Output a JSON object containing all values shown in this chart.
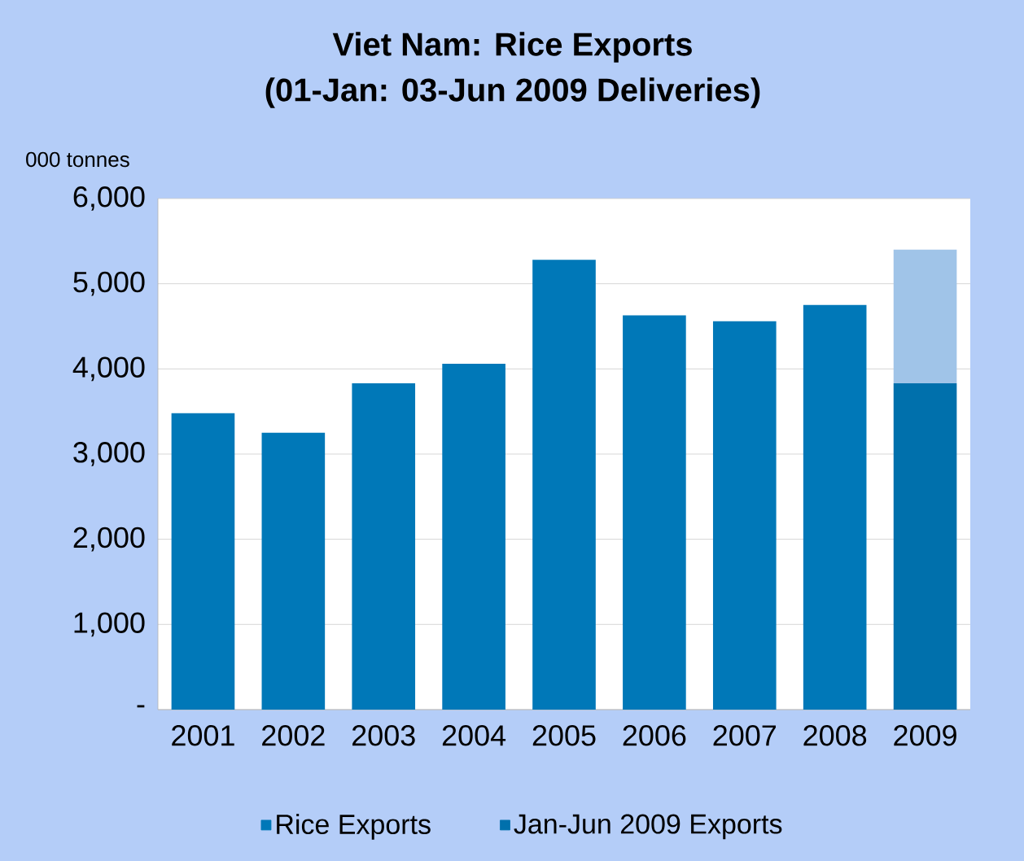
{
  "chart_data": {
    "type": "bar",
    "title": "Viet Nam:  Rice Exports\n(01-Jan: 03-Jun 2009 Deliveries)",
    "ylabel": "000 tonnes",
    "categories": [
      "2001",
      "2002",
      "2003",
      "2004",
      "2005",
      "2006",
      "2007",
      "2008",
      "2009"
    ],
    "series": [
      {
        "name": "Rice Exports",
        "color": "#0078b8",
        "values": [
          3480,
          3250,
          3830,
          4060,
          5280,
          4630,
          4560,
          4750,
          null
        ]
      },
      {
        "name": "Jan-Jun 2009 Exports",
        "color": "#0070ac",
        "values": [
          null,
          null,
          null,
          null,
          null,
          null,
          null,
          null,
          3830
        ]
      },
      {
        "color": "#a0c4e8",
        "values": [
          null,
          null,
          null,
          null,
          null,
          null,
          null,
          null,
          1570
        ]
      }
    ],
    "stacked": true,
    "ylim": [
      0,
      6000
    ],
    "yticks": [
      {
        "value": 0,
        "label": "-"
      },
      {
        "value": 1000,
        "label": "1,000"
      },
      {
        "value": 2000,
        "label": "2,000"
      },
      {
        "value": 3000,
        "label": "3,000"
      },
      {
        "value": 4000,
        "label": "4,000"
      },
      {
        "value": 5000,
        "label": "5,000"
      },
      {
        "value": 6000,
        "label": "6,000"
      }
    ],
    "grid": "y",
    "legend": "bottom"
  }
}
